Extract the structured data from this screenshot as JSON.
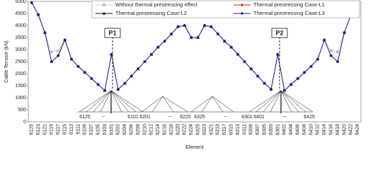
{
  "chart_data": {
    "type": "line",
    "x_label": "Element",
    "y_label": "Cable Tension (kN)",
    "ylim": [
      0,
      5000
    ],
    "yticks": [
      0,
      500,
      1000,
      1500,
      2000,
      2500,
      3000,
      3500,
      4000,
      4500,
      5000
    ],
    "grid": false,
    "categories": [
      "6125",
      "6123",
      "6121",
      "6119",
      "6117",
      "6115",
      "6113",
      "6111",
      "6109",
      "6107",
      "6105",
      "6103",
      "6101",
      "6202",
      "6204",
      "6206",
      "6208",
      "6210",
      "6212",
      "6214",
      "6216",
      "6218",
      "6220",
      "6222",
      "6224",
      "6325",
      "6323",
      "6321",
      "6319",
      "6317",
      "6315",
      "6313",
      "6311",
      "6309",
      "6307",
      "6305",
      "6303",
      "6301",
      "6402",
      "6404",
      "6406",
      "6408",
      "6410",
      "6412",
      "6414",
      "6416",
      "6418",
      "6420",
      "6422",
      "6424"
    ],
    "series": [
      {
        "name": "Without thermal prestressing effect",
        "color": "#999999",
        "marker": "x",
        "line_style": "dotted",
        "values": [
          4950,
          4450,
          3700,
          2900,
          2950,
          3400,
          2600,
          2300,
          2050,
          1800,
          1550,
          1300,
          2800,
          1350,
          1600,
          1900,
          2200,
          2500,
          2800,
          3100,
          3350,
          3650,
          3950,
          4000,
          3500,
          3500,
          4000,
          3950,
          3650,
          3350,
          3100,
          2800,
          2500,
          2200,
          1900,
          1600,
          1350,
          2800,
          1300,
          1550,
          1800,
          2050,
          2300,
          2600,
          3400,
          2950,
          2900,
          3700,
          4450,
          4950
        ]
      },
      {
        "name": "Thermal prestressing Case-L1",
        "color": "#e02020",
        "marker": "diamond",
        "line_style": "solid",
        "values": [
          4950,
          4450,
          3700,
          2500,
          2750,
          3400,
          2600,
          2300,
          2050,
          1800,
          1550,
          1300,
          2800,
          1350,
          1600,
          1900,
          2200,
          2500,
          2800,
          3100,
          3350,
          3650,
          3950,
          4000,
          3500,
          3500,
          4000,
          3950,
          3650,
          3350,
          3100,
          2800,
          2500,
          2200,
          1900,
          1600,
          1350,
          2800,
          1300,
          1550,
          1800,
          2050,
          2300,
          2600,
          3400,
          2750,
          2500,
          3700,
          4450,
          4950
        ]
      },
      {
        "name": "Thermal prestressing Case-L2",
        "color": "#111111",
        "marker": "triangle",
        "line_style": "solid",
        "values": [
          4950,
          4450,
          3700,
          2500,
          2750,
          3400,
          2600,
          2300,
          2050,
          1800,
          1550,
          1300,
          2800,
          1350,
          1600,
          1900,
          2200,
          2500,
          2800,
          3100,
          3350,
          3650,
          3950,
          4000,
          3500,
          3500,
          4000,
          3950,
          3650,
          3350,
          3100,
          2800,
          2500,
          2200,
          1900,
          1600,
          1350,
          2800,
          1300,
          1550,
          1800,
          2050,
          2300,
          2600,
          3400,
          2750,
          2500,
          3700,
          4450,
          4950
        ]
      },
      {
        "name": "Thermal prestressing Case-L3",
        "color": "#1a1a9a",
        "marker": "circle",
        "line_style": "solid",
        "values": [
          4950,
          4450,
          3700,
          2500,
          2750,
          3400,
          2600,
          2300,
          2050,
          1800,
          1550,
          1300,
          2800,
          1350,
          1600,
          1900,
          2200,
          2500,
          2800,
          3100,
          3350,
          3650,
          3950,
          4000,
          3500,
          3500,
          4000,
          3950,
          3650,
          3350,
          3100,
          2800,
          2500,
          2200,
          1900,
          1600,
          1350,
          2800,
          1300,
          1550,
          1800,
          2050,
          2300,
          2600,
          3400,
          2750,
          2500,
          3700,
          4450,
          4950
        ]
      }
    ],
    "annotations": {
      "pylons": [
        "P1",
        "P2"
      ],
      "elements": [
        "6125",
        "~",
        "6101",
        "6201",
        "~",
        "6225",
        "6325",
        "~",
        "6301",
        "6401",
        "~",
        "6425"
      ]
    }
  }
}
